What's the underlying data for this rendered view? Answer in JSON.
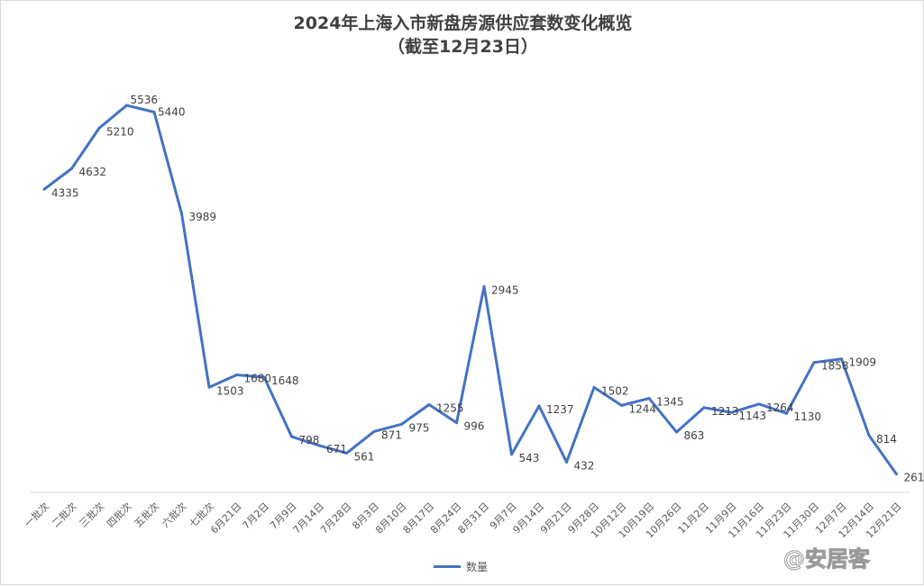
{
  "chart_data": {
    "type": "line",
    "title": "2024年上海入市新盘房源供应套数变化概览",
    "subtitle": "（截至12月23日）",
    "xlabel": "",
    "ylabel": "",
    "ylim": [
      0,
      6000
    ],
    "grid": false,
    "legend": "bottom",
    "categories": [
      "一批次",
      "二批次",
      "三批次",
      "四批次",
      "五批次",
      "六批次",
      "七批次",
      "6月21日",
      "7月2日",
      "7月9日",
      "7月14日",
      "7月28日",
      "8月3日",
      "8月10日",
      "8月17日",
      "8月24日",
      "8月31日",
      "9月7日",
      "9月14日",
      "9月21日",
      "9月28日",
      "10月12日",
      "10月19日",
      "10月26日",
      "11月2日",
      "11月9日",
      "11月16日",
      "11月23日",
      "11月30日",
      "12月7日",
      "12月14日",
      "12月21日"
    ],
    "series": [
      {
        "name": "数量",
        "color": "#4472c4",
        "values": [
          4335,
          4632,
          5210,
          5536,
          5440,
          3989,
          1503,
          1680,
          1648,
          798,
          671,
          561,
          871,
          975,
          1255,
          996,
          2945,
          543,
          1237,
          432,
          1502,
          1244,
          1345,
          863,
          1213,
          1143,
          1264,
          1130,
          1858,
          1909,
          814,
          261
        ]
      }
    ]
  },
  "watermark": "@安居客"
}
